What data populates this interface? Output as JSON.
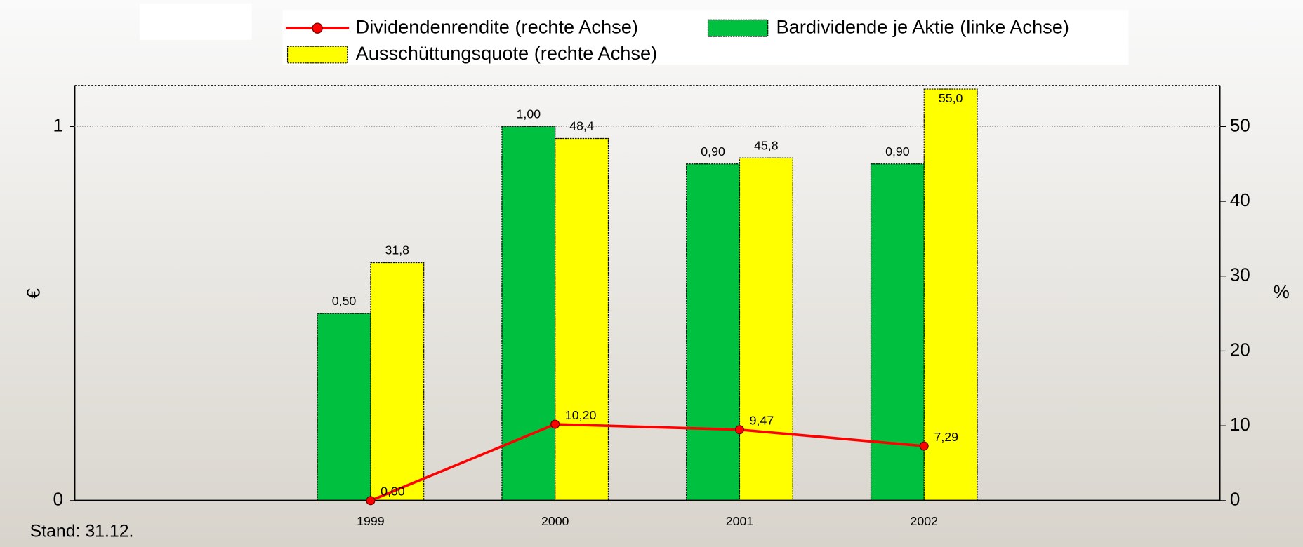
{
  "chart_data": {
    "type": "bar",
    "categories": [
      "1999",
      "2000",
      "2001",
      "2002"
    ],
    "series": [
      {
        "name": "Dividendenrendite (rechte Achse)",
        "type": "line",
        "axis": "y2",
        "color": "#ff0000",
        "values": [
          0,
          10.2,
          9.47,
          7.29
        ],
        "value_labels": [
          "0,00",
          "10,20",
          "9,47",
          "7,29"
        ]
      },
      {
        "name": "Bardividende je Aktie (linke Achse)",
        "type": "bar",
        "color": "#00c040",
        "values": [
          0.5,
          1.0,
          0.9,
          0.9
        ],
        "value_labels": [
          "0,50",
          "1,00",
          "0,90",
          "0,90"
        ]
      },
      {
        "name": "Ausschüttungsquote (rechte Achse)",
        "type": "bar",
        "axis": "y2",
        "color": "#ffff00",
        "values": [
          31.8,
          48.4,
          45.8,
          55.0
        ],
        "value_labels": [
          "31,8",
          "48,4",
          "45,8",
          "55,0"
        ]
      }
    ],
    "ylabel": "€",
    "y2label": "%",
    "ylim": [
      0,
      1.11
    ],
    "yticks": [
      0,
      1
    ],
    "y2lim": [
      0,
      55.5
    ],
    "y2ticks": [
      0,
      10,
      20,
      30,
      40,
      50
    ],
    "grid": true,
    "note": "Stand: 31.12."
  }
}
